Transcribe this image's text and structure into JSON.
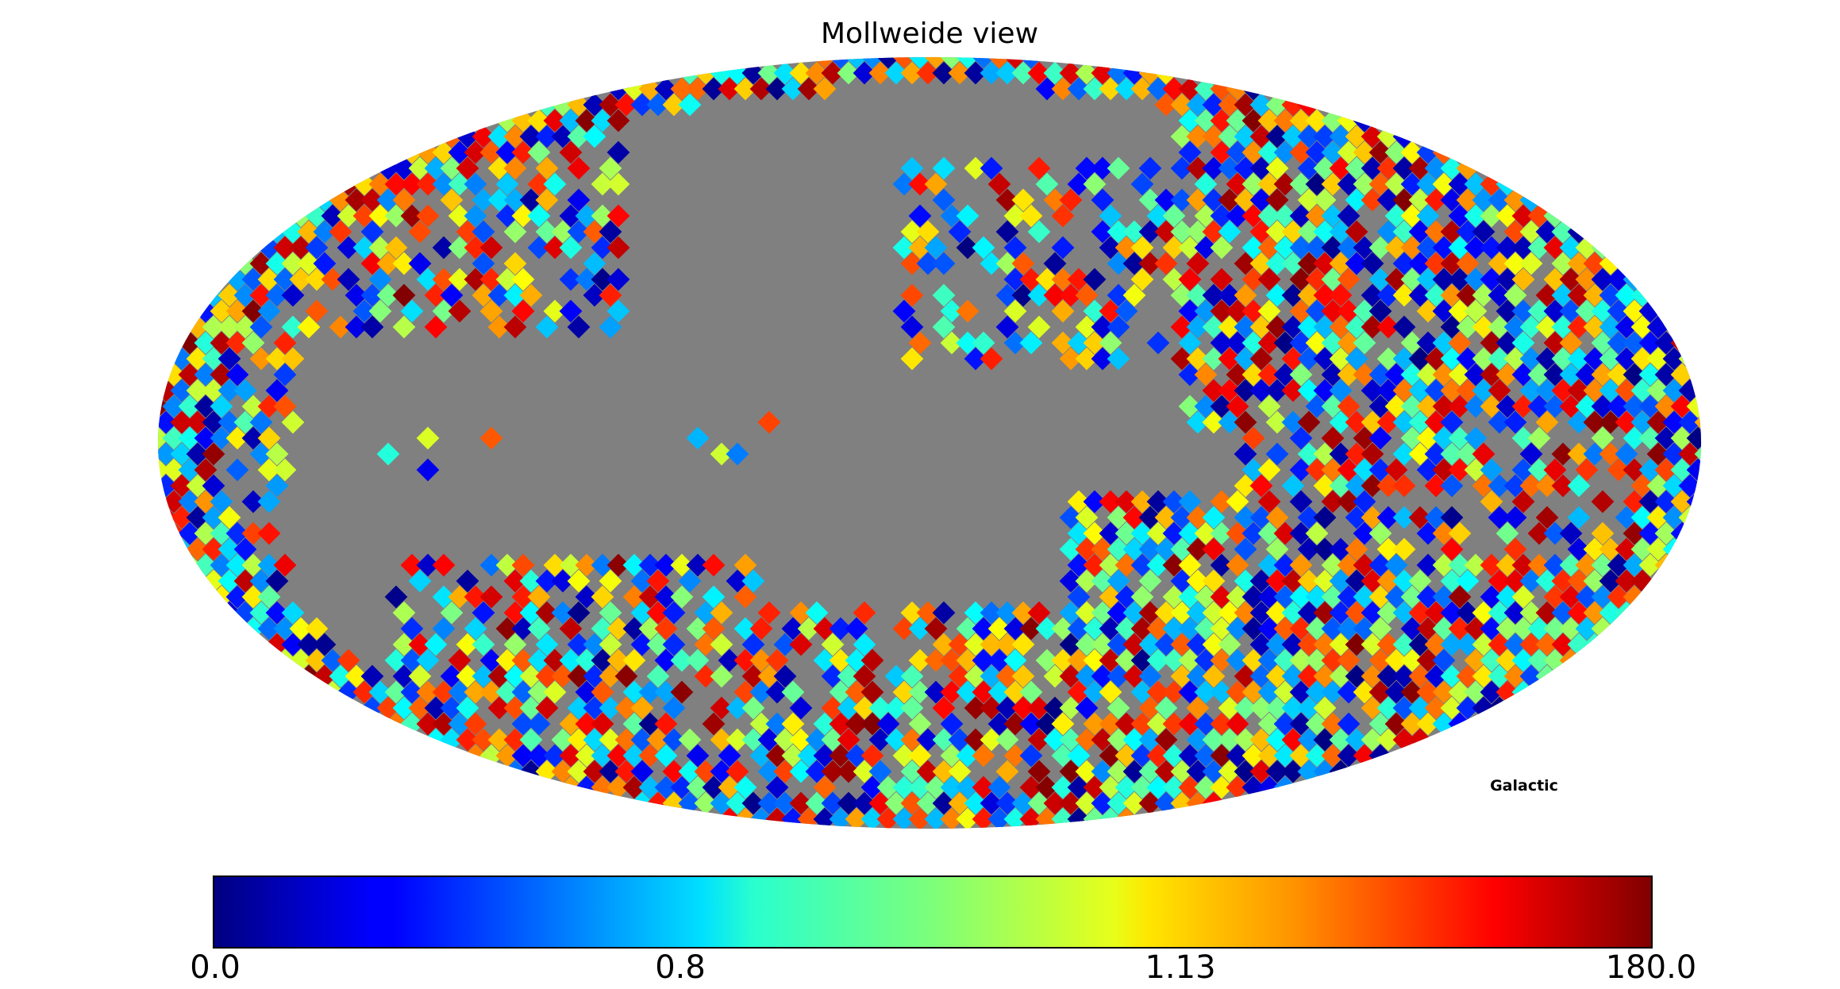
{
  "chart_data": {
    "type": "heatmap",
    "projection": "mollweide",
    "title": "Mollweide view",
    "coordinate_label": "Galactic",
    "colormap": "jet",
    "masked_color": "#808080",
    "colorbar": {
      "orientation": "horizontal",
      "placement": "bottom",
      "tick_labels": [
        "0.0",
        "0.8",
        "1.13",
        "180.0"
      ]
    },
    "coverage": {
      "masked_regions": [
        "broad grey band along the galactic plane, widest toward the left",
        "large grey region in the upper-left to upper-center sky",
        "grey wedges descending from the plane into the lower-center sky"
      ],
      "dense_pixel_regions": [
        "upper-right quadrant",
        "lower-right quadrant",
        "lower-center toward the south pole",
        "left limb and outer rim"
      ]
    }
  }
}
